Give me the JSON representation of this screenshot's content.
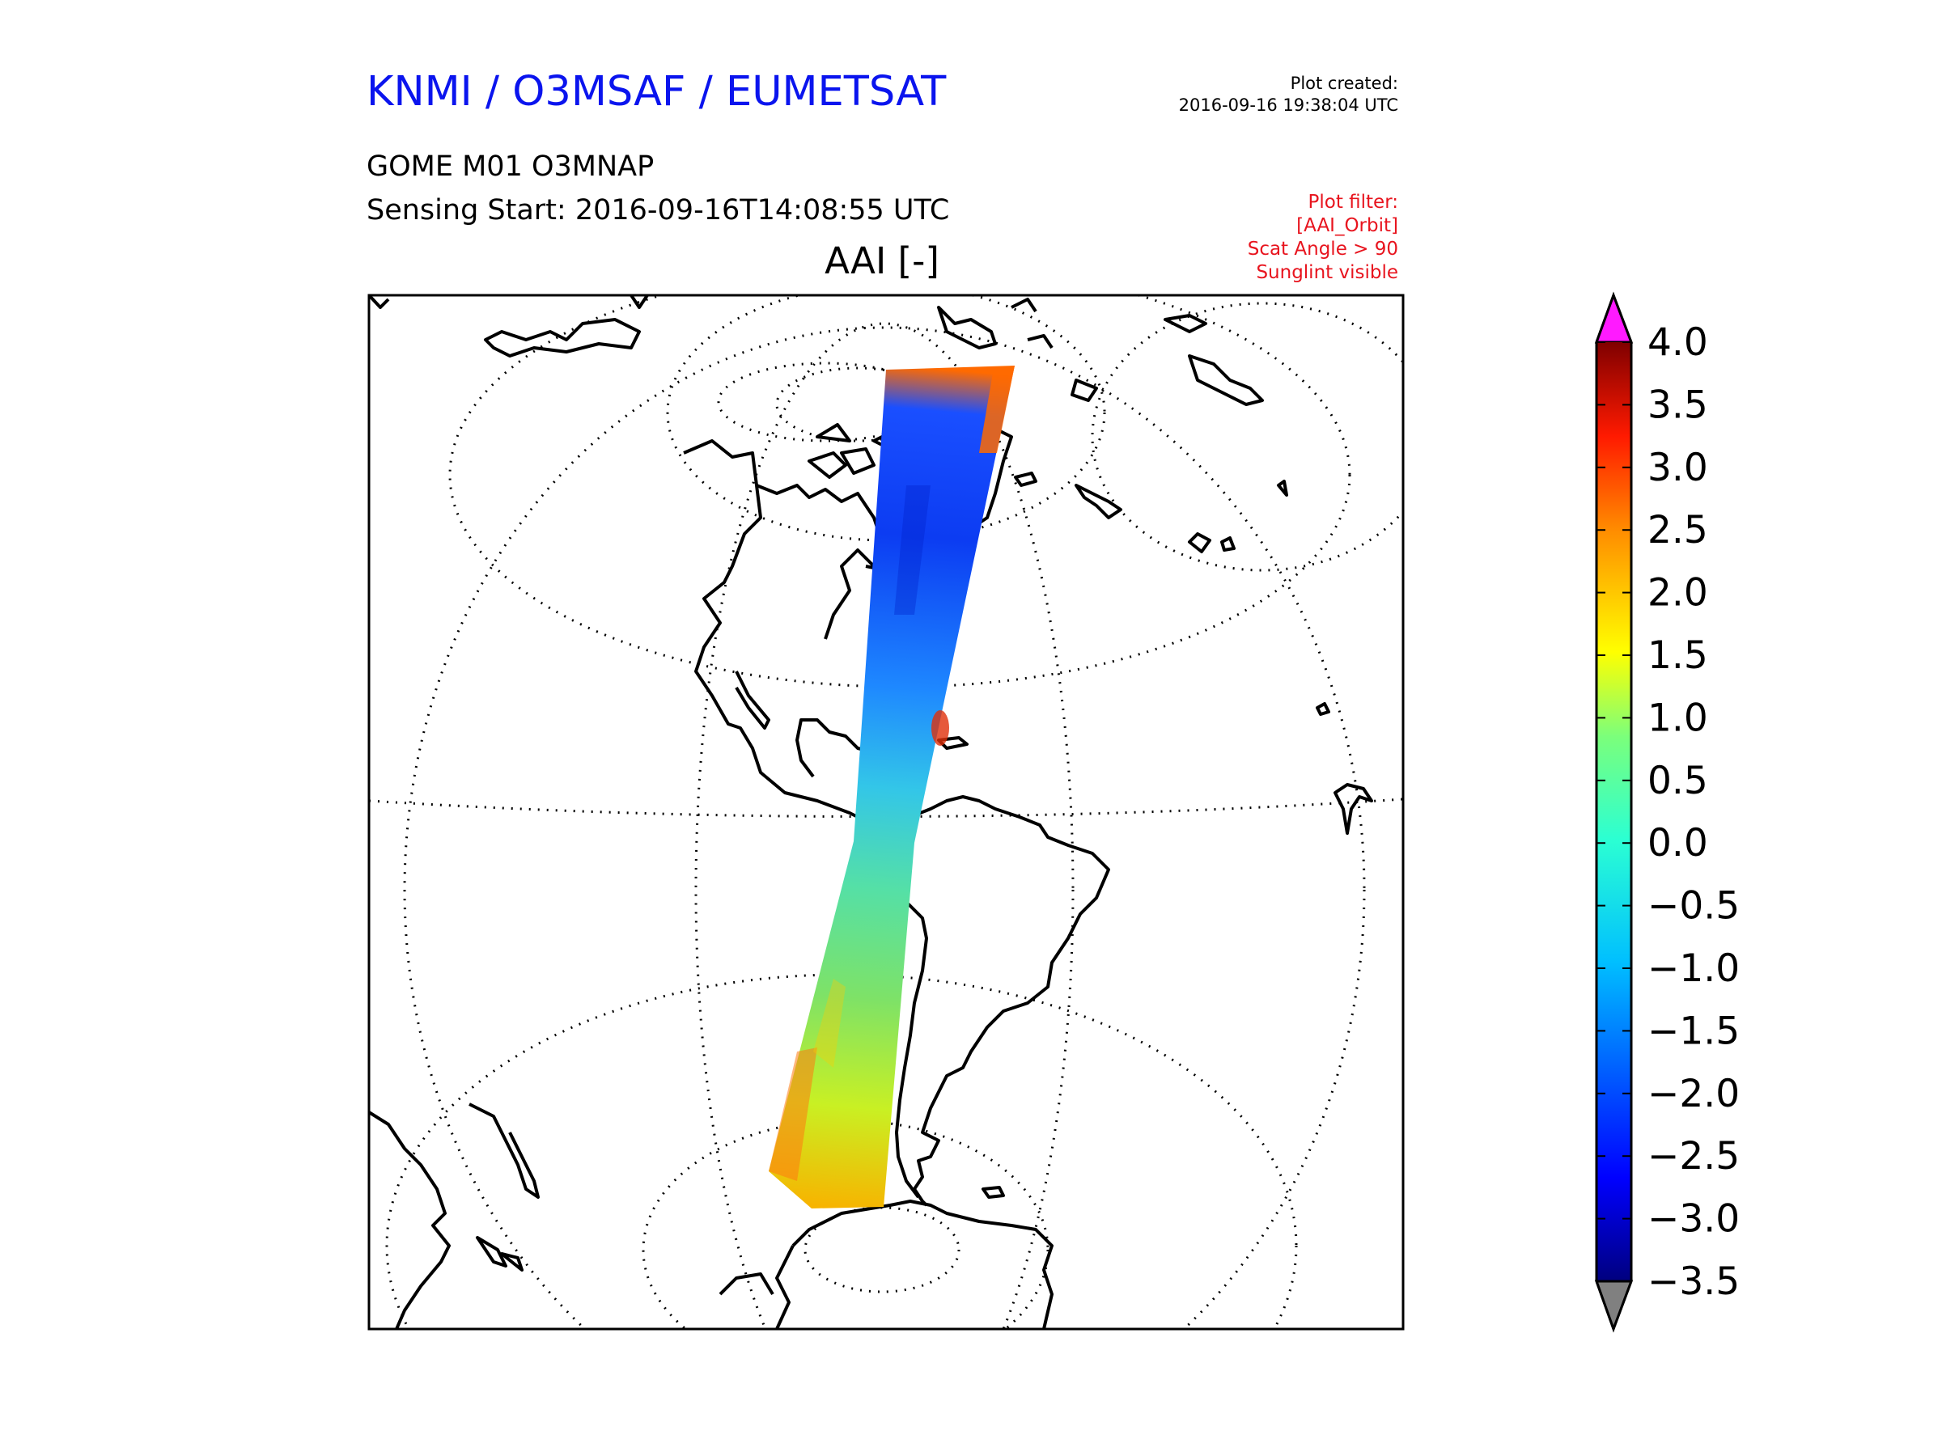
{
  "header": {
    "organization": "KNMI / O3MSAF / EUMETSAT",
    "product": "GOME M01 O3MNAP",
    "sensing_start": "Sensing Start: 2016-09-16T14:08:55 UTC",
    "plot_created_label": "Plot created:",
    "plot_created_value": "2016-09-16 19:38:04 UTC",
    "filter_lines": [
      "Plot filter:",
      "[AAI_Orbit]",
      "Scat Angle > 90",
      "Sunglint visible"
    ]
  },
  "map": {
    "variable_title": "AAI [-]",
    "projection": "satellite perspective centred on the Americas",
    "graticule": "dotted"
  },
  "colorbar": {
    "min": -3.5,
    "max": 4.0,
    "tick_labels": [
      "4.0",
      "3.5",
      "3.0",
      "2.5",
      "2.0",
      "1.5",
      "1.0",
      "0.5",
      "0.0",
      "−0.5",
      "−1.0",
      "−1.5",
      "−2.0",
      "−2.5",
      "−3.0",
      "−3.5"
    ],
    "over_color": "#ff1aff",
    "under_color": "#808080",
    "colormap": "jet"
  },
  "colors": {
    "title_blue": "#0a14ee",
    "filter_red": "#e8141e"
  }
}
